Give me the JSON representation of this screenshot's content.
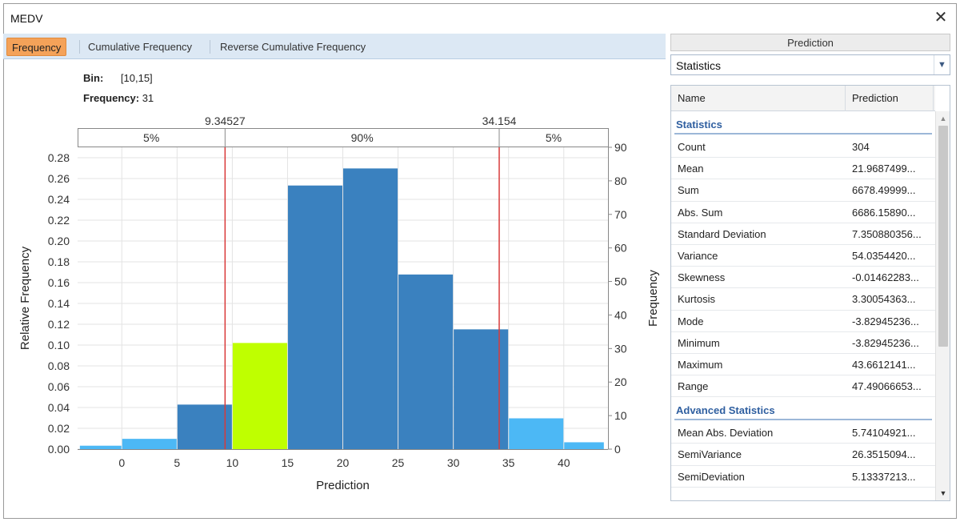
{
  "window": {
    "title": "MEDV",
    "close_label": "✕"
  },
  "tabs": [
    {
      "label": "Frequency",
      "active": true
    },
    {
      "label": "Cumulative Frequency",
      "active": false
    },
    {
      "label": "Reverse Cumulative Frequency",
      "active": false
    }
  ],
  "info": {
    "bin_label": "Bin:",
    "bin_value": "[10,15]",
    "freq_label": "Frequency:",
    "freq_value": "31"
  },
  "colors": {
    "bar_main": "#3a81bf",
    "bar_tail": "#4cb8f5",
    "bar_selected": "#bfff00",
    "marker": "#d93a3a"
  },
  "chart_data": {
    "type": "bar",
    "xlabel": "Prediction",
    "ylabel": "Relative Frequency",
    "y2label": "Frequency",
    "x_ticks": [
      0,
      5,
      10,
      15,
      20,
      25,
      30,
      35,
      40
    ],
    "x_range": [
      -4,
      44
    ],
    "y_ticks": [
      "0.00",
      "0.02",
      "0.04",
      "0.06",
      "0.08",
      "0.10",
      "0.12",
      "0.14",
      "0.16",
      "0.18",
      "0.20",
      "0.22",
      "0.24",
      "0.26",
      "0.28"
    ],
    "y_range": [
      0,
      0.29
    ],
    "y2_ticks": [
      0,
      10,
      20,
      30,
      40,
      50,
      60,
      70,
      80,
      90
    ],
    "y2_range": [
      0,
      90
    ],
    "bins": [
      {
        "from": -3.83,
        "to": 0,
        "rel": 0.0033,
        "kind": "tail"
      },
      {
        "from": 0,
        "to": 5,
        "rel": 0.0099,
        "kind": "tail"
      },
      {
        "from": 5,
        "to": 10,
        "rel": 0.0428,
        "kind": "main"
      },
      {
        "from": 10,
        "to": 15,
        "rel": 0.102,
        "kind": "selected"
      },
      {
        "from": 15,
        "to": 20,
        "rel": 0.2533,
        "kind": "main"
      },
      {
        "from": 20,
        "to": 25,
        "rel": 0.2697,
        "kind": "main"
      },
      {
        "from": 25,
        "to": 30,
        "rel": 0.1678,
        "kind": "main"
      },
      {
        "from": 30,
        "to": 35,
        "rel": 0.1151,
        "kind": "main"
      },
      {
        "from": 35,
        "to": 40,
        "rel": 0.0296,
        "kind": "tail"
      },
      {
        "from": 40,
        "to": 43.66,
        "rel": 0.0066,
        "kind": "tail"
      }
    ],
    "markers": [
      {
        "value": 9.34527,
        "label": "9.34527"
      },
      {
        "value": 34.154,
        "label": "34.154"
      }
    ],
    "bands": [
      {
        "label": "5%"
      },
      {
        "label": "90%"
      },
      {
        "label": "5%"
      }
    ]
  },
  "panel": {
    "header": "Prediction",
    "dropdown_value": "Statistics",
    "dropdown_icon": "chevron-down-icon",
    "columns": [
      "Name",
      "Prediction"
    ],
    "sections": [
      {
        "title": "Statistics",
        "rows": [
          {
            "name": "Count",
            "value": "304"
          },
          {
            "name": "Mean",
            "value": "21.9687499..."
          },
          {
            "name": "Sum",
            "value": "6678.49999..."
          },
          {
            "name": "Abs. Sum",
            "value": "6686.15890..."
          },
          {
            "name": "Standard Deviation",
            "value": "7.350880356..."
          },
          {
            "name": "Variance",
            "value": "54.0354420..."
          },
          {
            "name": "Skewness",
            "value": "-0.01462283..."
          },
          {
            "name": "Kurtosis",
            "value": "3.30054363..."
          },
          {
            "name": "Mode",
            "value": "-3.82945236..."
          },
          {
            "name": "Minimum",
            "value": "-3.82945236..."
          },
          {
            "name": "Maximum",
            "value": "43.6612141..."
          },
          {
            "name": "Range",
            "value": "47.49066653..."
          }
        ]
      },
      {
        "title": "Advanced Statistics",
        "rows": [
          {
            "name": "Mean Abs. Deviation",
            "value": "5.74104921..."
          },
          {
            "name": "SemiVariance",
            "value": "26.3515094..."
          },
          {
            "name": "SemiDeviation",
            "value": "5.13337213..."
          }
        ]
      }
    ]
  }
}
